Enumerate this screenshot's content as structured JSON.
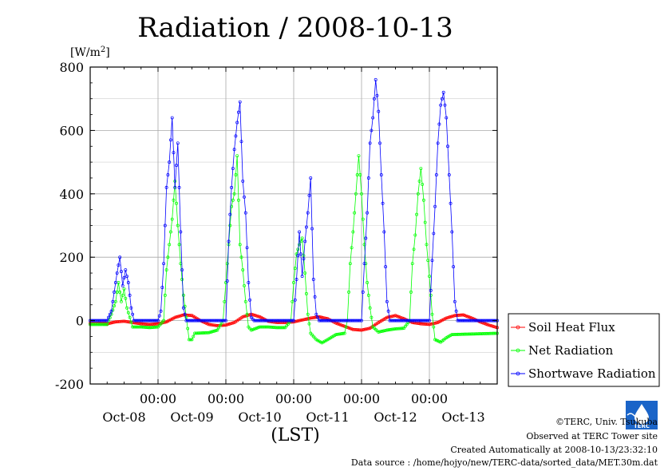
{
  "chart_data": {
    "type": "line",
    "title": "Radiation / 2008-10-13",
    "ylabel": "[W/m²]",
    "ylabel_base": "[W/m",
    "ylabel_sup": "2",
    "ylabel_end": "]",
    "xlabel": "(LST)",
    "ylim": [
      -200,
      800
    ],
    "yticks": [
      -200,
      0,
      200,
      400,
      600,
      800
    ],
    "x_range_days": [
      0,
      6
    ],
    "x_unit": "hours since 2008-10-08 00:00 LST",
    "midnight_tick_label": "00:00",
    "midnight_ticks": [
      24,
      48,
      72,
      96,
      120
    ],
    "date_labels": [
      {
        "hour": 12,
        "label": "Oct-08"
      },
      {
        "hour": 36,
        "label": "Oct-09"
      },
      {
        "hour": 60,
        "label": "Oct-10"
      },
      {
        "hour": 84,
        "label": "Oct-11"
      },
      {
        "hour": 108,
        "label": "Oct-12"
      },
      {
        "hour": 132,
        "label": "Oct-13"
      }
    ],
    "grid": true,
    "legend_position": "right",
    "series": [
      {
        "name": "Soil Heat Flux",
        "color": "#ff0000",
        "points": [
          [
            0,
            -8
          ],
          [
            6,
            -10
          ],
          [
            9,
            -4
          ],
          [
            12,
            -2
          ],
          [
            15,
            -6
          ],
          [
            18,
            -10
          ],
          [
            21,
            -12
          ],
          [
            24,
            -10
          ],
          [
            27,
            -4
          ],
          [
            30,
            10
          ],
          [
            33,
            18
          ],
          [
            36,
            16
          ],
          [
            39,
            0
          ],
          [
            42,
            -12
          ],
          [
            45,
            -16
          ],
          [
            48,
            -14
          ],
          [
            51,
            -6
          ],
          [
            54,
            12
          ],
          [
            57,
            20
          ],
          [
            60,
            12
          ],
          [
            63,
            -2
          ],
          [
            66,
            -6
          ],
          [
            69,
            -6
          ],
          [
            72,
            -4
          ],
          [
            75,
            2
          ],
          [
            78,
            8
          ],
          [
            81,
            12
          ],
          [
            84,
            6
          ],
          [
            87,
            -8
          ],
          [
            90,
            -18
          ],
          [
            93,
            -28
          ],
          [
            96,
            -30
          ],
          [
            99,
            -24
          ],
          [
            102,
            -6
          ],
          [
            105,
            10
          ],
          [
            108,
            16
          ],
          [
            111,
            6
          ],
          [
            114,
            -6
          ],
          [
            117,
            -10
          ],
          [
            120,
            -12
          ],
          [
            123,
            -6
          ],
          [
            126,
            8
          ],
          [
            129,
            16
          ],
          [
            132,
            18
          ],
          [
            135,
            8
          ],
          [
            138,
            -4
          ],
          [
            141,
            -14
          ],
          [
            144,
            -22
          ]
        ]
      },
      {
        "name": "Net Radiation",
        "color": "#00ff00",
        "points": [
          [
            0,
            -12
          ],
          [
            6,
            -12
          ],
          [
            7.5,
            20
          ],
          [
            9,
            60
          ],
          [
            10,
            120
          ],
          [
            11,
            60
          ],
          [
            12,
            100
          ],
          [
            13,
            40
          ],
          [
            15,
            -20
          ],
          [
            18,
            -20
          ],
          [
            21,
            -22
          ],
          [
            24,
            -20
          ],
          [
            26,
            0
          ],
          [
            27,
            160
          ],
          [
            28,
            240
          ],
          [
            29,
            320
          ],
          [
            30,
            440
          ],
          [
            31,
            300
          ],
          [
            32,
            180
          ],
          [
            33,
            80
          ],
          [
            34,
            10
          ],
          [
            35,
            -60
          ],
          [
            36,
            -60
          ],
          [
            37,
            -40
          ],
          [
            42,
            -38
          ],
          [
            45,
            -30
          ],
          [
            47,
            0
          ],
          [
            48,
            120
          ],
          [
            49,
            240
          ],
          [
            50,
            360
          ],
          [
            51,
            400
          ],
          [
            52,
            520
          ],
          [
            53,
            240
          ],
          [
            54,
            160
          ],
          [
            55,
            60
          ],
          [
            56,
            -20
          ],
          [
            57,
            -30
          ],
          [
            60,
            -20
          ],
          [
            63,
            -20
          ],
          [
            66,
            -22
          ],
          [
            69,
            -22
          ],
          [
            71,
            0
          ],
          [
            72,
            120
          ],
          [
            73,
            210
          ],
          [
            74,
            240
          ],
          [
            75,
            260
          ],
          [
            76,
            150
          ],
          [
            77,
            20
          ],
          [
            78,
            -40
          ],
          [
            80,
            -60
          ],
          [
            82,
            -70
          ],
          [
            84,
            -60
          ],
          [
            87,
            -44
          ],
          [
            90,
            -40
          ],
          [
            91,
            0
          ],
          [
            92,
            180
          ],
          [
            93,
            280
          ],
          [
            94,
            400
          ],
          [
            95,
            520
          ],
          [
            96,
            400
          ],
          [
            97,
            240
          ],
          [
            98,
            120
          ],
          [
            99,
            40
          ],
          [
            100,
            -20
          ],
          [
            102,
            -36
          ],
          [
            105,
            -30
          ],
          [
            108,
            -26
          ],
          [
            111,
            -24
          ],
          [
            113,
            0
          ],
          [
            114,
            180
          ],
          [
            115,
            270
          ],
          [
            116,
            400
          ],
          [
            117,
            480
          ],
          [
            118,
            380
          ],
          [
            119,
            240
          ],
          [
            120,
            140
          ],
          [
            121,
            20
          ],
          [
            122,
            -60
          ],
          [
            124,
            -68
          ],
          [
            126,
            -54
          ],
          [
            128,
            -44
          ],
          [
            144,
            -40
          ]
        ]
      },
      {
        "name": "Shortwave Radiation",
        "color": "#0000ff",
        "points": [
          [
            0,
            0
          ],
          [
            6,
            0
          ],
          [
            7.5,
            30
          ],
          [
            8.5,
            90
          ],
          [
            9.5,
            150
          ],
          [
            10.5,
            200
          ],
          [
            11.5,
            110
          ],
          [
            12.5,
            160
          ],
          [
            13.5,
            120
          ],
          [
            14.5,
            40
          ],
          [
            15.5,
            0
          ],
          [
            24,
            0
          ],
          [
            25,
            30
          ],
          [
            26,
            180
          ],
          [
            27,
            420
          ],
          [
            28,
            500
          ],
          [
            29,
            640
          ],
          [
            30,
            420
          ],
          [
            31,
            560
          ],
          [
            32,
            280
          ],
          [
            33,
            40
          ],
          [
            34,
            0
          ],
          [
            48,
            0
          ],
          [
            49,
            250
          ],
          [
            50,
            420
          ],
          [
            51,
            540
          ],
          [
            52,
            625
          ],
          [
            53,
            690
          ],
          [
            54,
            440
          ],
          [
            55,
            340
          ],
          [
            56,
            120
          ],
          [
            57,
            10
          ],
          [
            58,
            0
          ],
          [
            72,
            0
          ],
          [
            73,
            130
          ],
          [
            74,
            280
          ],
          [
            75,
            140
          ],
          [
            76,
            250
          ],
          [
            77,
            340
          ],
          [
            78,
            450
          ],
          [
            79,
            130
          ],
          [
            80,
            20
          ],
          [
            81,
            0
          ],
          [
            96,
            0
          ],
          [
            97,
            180
          ],
          [
            98,
            340
          ],
          [
            99,
            560
          ],
          [
            100,
            640
          ],
          [
            101,
            760
          ],
          [
            102,
            660
          ],
          [
            103,
            460
          ],
          [
            104,
            280
          ],
          [
            105,
            60
          ],
          [
            106,
            0
          ],
          [
            120,
            0
          ],
          [
            121,
            190
          ],
          [
            122,
            360
          ],
          [
            123,
            560
          ],
          [
            124,
            680
          ],
          [
            125,
            720
          ],
          [
            126,
            640
          ],
          [
            127,
            460
          ],
          [
            128,
            280
          ],
          [
            129,
            60
          ],
          [
            130,
            0
          ],
          [
            144,
            0
          ]
        ]
      }
    ]
  },
  "footer": {
    "copyright": "©TERC, Univ. Tsukuba",
    "observed": "Observed at TERC Tower site",
    "created": "Created Automatically at 2008-10-13/23:32:10",
    "source": "Data source : /home/hojyo/new/TERC-data/sorted_data/MET.30m.dat",
    "logo_text": "TERC"
  },
  "colors": {
    "soil": "#ff0000",
    "net": "#00ff00",
    "shortwave": "#0000ff",
    "grid": "#999999",
    "logo": "#1a64c8"
  }
}
